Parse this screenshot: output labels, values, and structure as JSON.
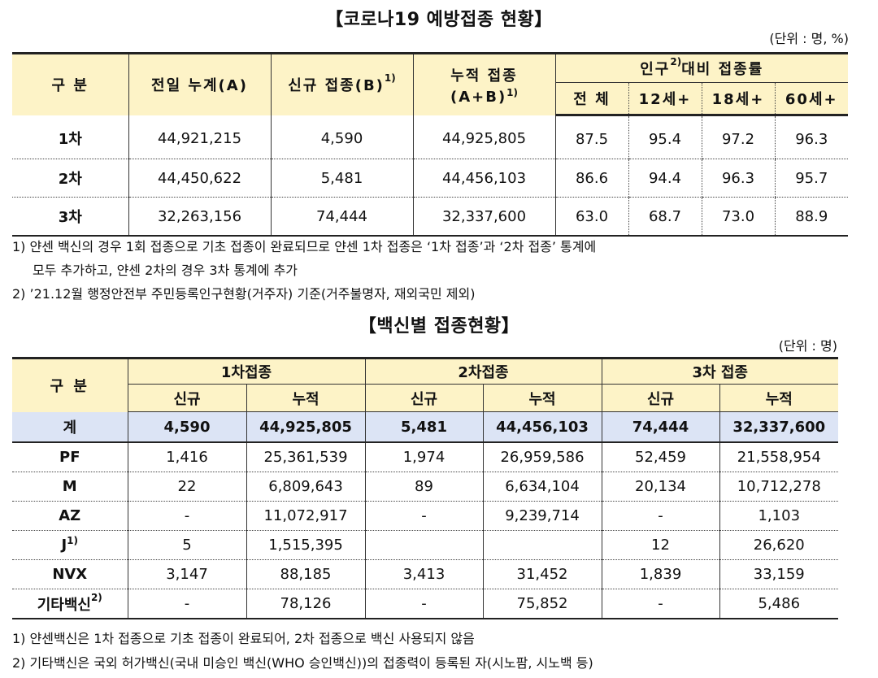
{
  "section1": {
    "title": "【코로나19 예방접종 현황】",
    "unit": "(단위 : 명, %)",
    "headers": {
      "category": "구 분",
      "prev_total": "전일 누계(A)",
      "new": "신규 접종(B)",
      "new_sup": "1)",
      "cumulative_line1": "누적 접종",
      "cumulative_line2": "(A+B)",
      "cumulative_sup": "1)",
      "rate": "인구",
      "rate_sup": "2)",
      "rate_rest": "대비 접종률",
      "all": "전 체",
      "age12": "12세+",
      "age18": "18세+",
      "age60": "60세+"
    },
    "rows": [
      {
        "label": "1차",
        "prev": "44,921,215",
        "new": "4,590",
        "cum": "44,925,805",
        "all": "87.5",
        "a12": "95.4",
        "a18": "97.2",
        "a60": "96.3"
      },
      {
        "label": "2차",
        "prev": "44,450,622",
        "new": "5,481",
        "cum": "44,456,103",
        "all": "86.6",
        "a12": "94.4",
        "a18": "96.3",
        "a60": "95.7"
      },
      {
        "label": "3차",
        "prev": "32,263,156",
        "new": "74,444",
        "cum": "32,337,600",
        "all": "63.0",
        "a12": "68.7",
        "a18": "73.0",
        "a60": "88.9"
      }
    ],
    "notes": [
      "1) 얀센 백신의 경우 1회 접종으로 기초 접종이 완료되므로 얀센 1차 접종은 ‘1차 접종’과 ‘2차 접종’ 통계에",
      "모두 추가하고, 얀센 2차의 경우 3차 통계에 추가",
      "2) ’21.12월 행정안전부 주민등록인구현황(거주자) 기준(거주불명자, 재외국민 제외)"
    ]
  },
  "section2": {
    "title": "【백신별 접종현황】",
    "unit": "(단위 : 명)",
    "headers": {
      "category": "구 분",
      "dose1": "1차접종",
      "dose2": "2차접종",
      "dose3": "3차 접종",
      "new": "신규",
      "cum": "누적"
    },
    "total": {
      "label": "계",
      "d1n": "4,590",
      "d1c": "44,925,805",
      "d2n": "5,481",
      "d2c": "44,456,103",
      "d3n": "74,444",
      "d3c": "32,337,600"
    },
    "rows": [
      {
        "label": "PF",
        "sup": "",
        "d1n": "1,416",
        "d1c": "25,361,539",
        "d2n": "1,974",
        "d2c": "26,959,586",
        "d3n": "52,459",
        "d3c": "21,558,954"
      },
      {
        "label": "M",
        "sup": "",
        "d1n": "22",
        "d1c": "6,809,643",
        "d2n": "89",
        "d2c": "6,634,104",
        "d3n": "20,134",
        "d3c": "10,712,278"
      },
      {
        "label": "AZ",
        "sup": "",
        "d1n": "-",
        "d1c": "11,072,917",
        "d2n": "-",
        "d2c": "9,239,714",
        "d3n": "-",
        "d3c": "1,103"
      },
      {
        "label": "J",
        "sup": "1)",
        "d1n": "5",
        "d1c": "1,515,395",
        "d2n": "",
        "d2c": "",
        "d3n": "12",
        "d3c": "26,620"
      },
      {
        "label": "NVX",
        "sup": "",
        "d1n": "3,147",
        "d1c": "88,185",
        "d2n": "3,413",
        "d2c": "31,452",
        "d3n": "1,839",
        "d3c": "33,159"
      },
      {
        "label": "기타백신",
        "sup": "2)",
        "d1n": "-",
        "d1c": "78,126",
        "d2n": "-",
        "d2c": "75,852",
        "d3n": "-",
        "d3c": "5,486"
      }
    ],
    "notes": [
      "1) 얀센백신은 1차 접종으로 기초 접종이 완료되어, 2차 접종으로 백신 사용되지 않음",
      "2) 기타백신은 국외 허가백신(국내 미승인 백신(WHO 승인백신))의 접종력이 등록된 자(시노팜, 시노백 등)"
    ]
  }
}
